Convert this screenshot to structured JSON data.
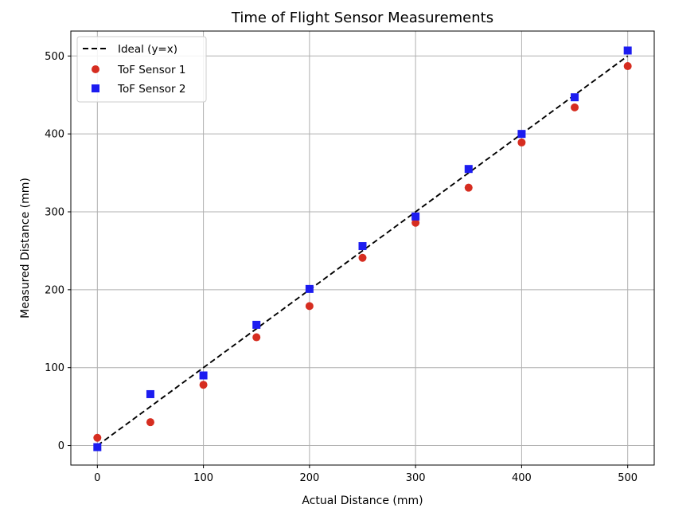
{
  "chart_data": {
    "type": "scatter",
    "title": "Time of Flight Sensor Measurements",
    "xlabel": "Actual Distance (mm)",
    "ylabel": "Measured Distance (mm)",
    "xlim": [
      -25,
      525
    ],
    "ylim": [
      -25,
      532
    ],
    "xticks": [
      0,
      100,
      200,
      300,
      400,
      500
    ],
    "yticks": [
      0,
      100,
      200,
      300,
      400,
      500
    ],
    "grid": true,
    "legend_position": "top-left",
    "reference_line": {
      "name": "Ideal (y=x)",
      "style": "dashed",
      "color": "#000000",
      "x": [
        0,
        500
      ],
      "y": [
        0,
        500
      ]
    },
    "series": [
      {
        "name": "ToF Sensor 1",
        "marker": "circle",
        "color": "#d62d20",
        "x": [
          0,
          50,
          100,
          150,
          200,
          250,
          300,
          350,
          400,
          450,
          500
        ],
        "y": [
          10,
          30,
          78,
          139,
          179,
          241,
          286,
          331,
          389,
          434,
          487
        ]
      },
      {
        "name": "ToF Sensor 2",
        "marker": "square",
        "color": "#1c1cf0",
        "x": [
          0,
          50,
          100,
          150,
          200,
          250,
          300,
          350,
          400,
          450,
          500
        ],
        "y": [
          -2,
          66,
          90,
          155,
          201,
          256,
          294,
          355,
          400,
          447,
          507
        ]
      }
    ]
  }
}
